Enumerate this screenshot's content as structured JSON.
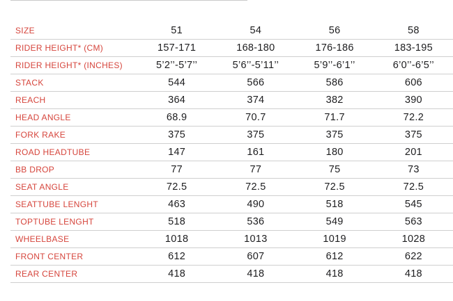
{
  "colors": {
    "label_red": "#d6453c",
    "value_dark": "#1d1d1f",
    "divider": "#cfcfcf",
    "background": "#ffffff"
  },
  "table": {
    "rows": [
      {
        "label": "SIZE",
        "values": [
          "51",
          "54",
          "56",
          "58"
        ]
      },
      {
        "label": "RIDER HEIGHT* (CM)",
        "values": [
          "157-171",
          "168-180",
          "176-186",
          "183-195"
        ]
      },
      {
        "label": "RIDER HEIGHT* (INCHES)",
        "values": [
          "5’2’’-5’7’’",
          "5’6’’-5’11’’",
          "5’9’’-6’1’’",
          "6’0’’-6’5’’"
        ]
      },
      {
        "label": "STACK",
        "values": [
          "544",
          "566",
          "586",
          "606"
        ]
      },
      {
        "label": "REACH",
        "values": [
          "364",
          "374",
          "382",
          "390"
        ]
      },
      {
        "label": "HEAD ANGLE",
        "values": [
          "68.9",
          "70.7",
          "71.7",
          "72.2"
        ]
      },
      {
        "label": "FORK RAKE",
        "values": [
          "375",
          "375",
          "375",
          "375"
        ]
      },
      {
        "label": "ROAD HEADTUBE",
        "values": [
          "147",
          "161",
          "180",
          "201"
        ]
      },
      {
        "label": "BB DROP",
        "values": [
          "77",
          "77",
          "75",
          "73"
        ]
      },
      {
        "label": "SEAT ANGLE",
        "values": [
          "72.5",
          "72.5",
          "72.5",
          "72.5"
        ]
      },
      {
        "label": "SEATTUBE LENGHT",
        "values": [
          "463",
          "490",
          "518",
          "545"
        ]
      },
      {
        "label": "TOPTUBE LENGHT",
        "values": [
          "518",
          "536",
          "549",
          "563"
        ]
      },
      {
        "label": "WHEELBASE",
        "values": [
          "1018",
          "1013",
          "1019",
          "1028"
        ]
      },
      {
        "label": "FRONT CENTER",
        "values": [
          "612",
          "607",
          "612",
          "622"
        ]
      },
      {
        "label": "REAR CENTER",
        "values": [
          "418",
          "418",
          "418",
          "418"
        ]
      }
    ]
  },
  "chart_data": {
    "type": "table",
    "title": "Bike geometry specification table",
    "categories": [
      "51",
      "54",
      "56",
      "58"
    ],
    "series": [
      {
        "name": "RIDER HEIGHT* (CM)",
        "values": [
          "157-171",
          "168-180",
          "176-186",
          "183-195"
        ]
      },
      {
        "name": "RIDER HEIGHT* (INCHES)",
        "values": [
          "5’2’’-5’7’’",
          "5’6’’-5’11’’",
          "5’9’’-6’1’’",
          "6’0’’-6’5’’"
        ]
      },
      {
        "name": "STACK",
        "values": [
          544,
          566,
          586,
          606
        ]
      },
      {
        "name": "REACH",
        "values": [
          364,
          374,
          382,
          390
        ]
      },
      {
        "name": "HEAD ANGLE",
        "values": [
          68.9,
          70.7,
          71.7,
          72.2
        ]
      },
      {
        "name": "FORK RAKE",
        "values": [
          375,
          375,
          375,
          375
        ]
      },
      {
        "name": "ROAD HEADTUBE",
        "values": [
          147,
          161,
          180,
          201
        ]
      },
      {
        "name": "BB DROP",
        "values": [
          77,
          77,
          75,
          73
        ]
      },
      {
        "name": "SEAT ANGLE",
        "values": [
          72.5,
          72.5,
          72.5,
          72.5
        ]
      },
      {
        "name": "SEATTUBE LENGHT",
        "values": [
          463,
          490,
          518,
          545
        ]
      },
      {
        "name": "TOPTUBE LENGHT",
        "values": [
          518,
          536,
          549,
          563
        ]
      },
      {
        "name": "WHEELBASE",
        "values": [
          1018,
          1013,
          1019,
          1028
        ]
      },
      {
        "name": "FRONT CENTER",
        "values": [
          612,
          607,
          612,
          622
        ]
      },
      {
        "name": "REAR CENTER",
        "values": [
          418,
          418,
          418,
          418
        ]
      }
    ]
  }
}
